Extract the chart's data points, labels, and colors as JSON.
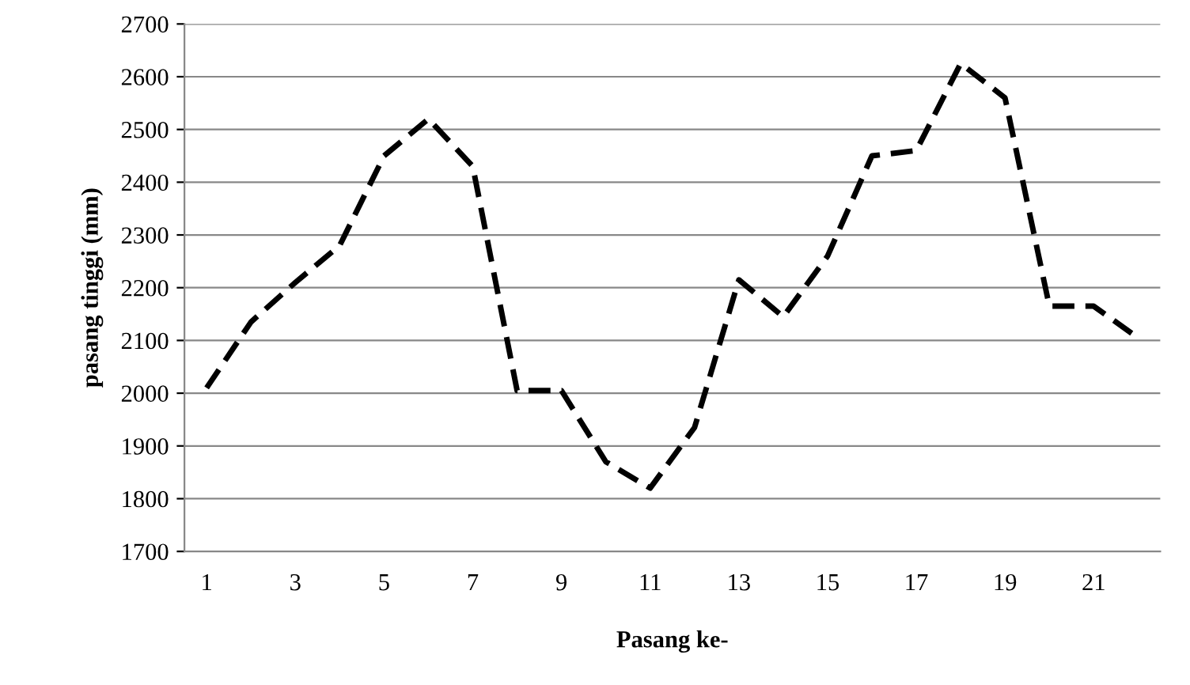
{
  "chart_data": {
    "type": "line",
    "xlabel": "Pasang ke-",
    "ylabel": "pasang tinggi (mm)",
    "categories": [
      "1",
      null,
      "3",
      null,
      "5",
      null,
      "7",
      null,
      "9",
      null,
      "11",
      null,
      "13",
      null,
      "15",
      null,
      "17",
      null,
      "19",
      null,
      "21",
      null
    ],
    "series": [
      {
        "color": "#000000",
        "values": [
          2010,
          2135,
          2210,
          2280,
          2450,
          2520,
          2430,
          2005,
          2005,
          1870,
          1820,
          1935,
          2215,
          2145,
          2260,
          2450,
          2460,
          2625,
          2560,
          2165,
          2165,
          2105
        ]
      }
    ],
    "ylim": [
      1700,
      2700
    ],
    "yticks": [
      1700,
      1800,
      1900,
      2000,
      2100,
      2200,
      2300,
      2400,
      2500,
      2600,
      2700
    ],
    "grid": "y",
    "line_style": "dashed",
    "marker": "none",
    "legend": false
  }
}
